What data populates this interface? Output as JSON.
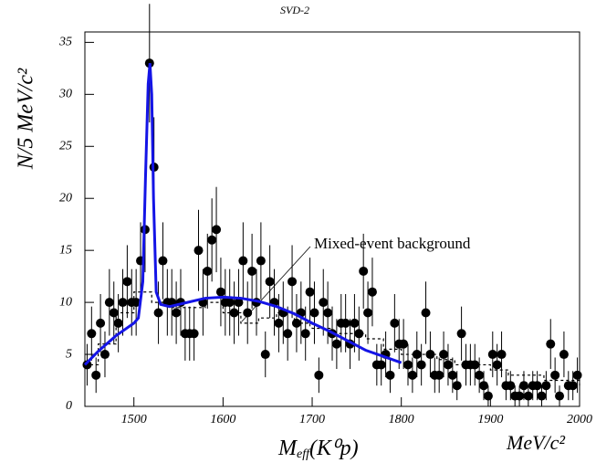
{
  "chart_data": {
    "type": "scatter",
    "title": "SVD-2",
    "y_label": "N/5 MeV/c²",
    "x_label": {
      "main": "M",
      "sub": "eff",
      "rest": "(K⁰p)"
    },
    "x_unit": "MeV/c²",
    "annotation": "Mixed-event background",
    "color": "#000000",
    "xlim": [
      1445,
      2000
    ],
    "ylim": [
      0,
      36
    ],
    "xticks": [
      1500,
      1600,
      1700,
      1800,
      1900,
      2000
    ],
    "yticks": [
      0,
      5,
      10,
      15,
      20,
      25,
      30,
      35
    ],
    "x": [
      1447.5,
      1452.5,
      1457.5,
      1462.5,
      1467.5,
      1472.5,
      1477.5,
      1482.5,
      1487.5,
      1492.5,
      1497.5,
      1502.5,
      1507.5,
      1512.5,
      1517.5,
      1522.5,
      1527.5,
      1532.5,
      1537.5,
      1542.5,
      1547.5,
      1552.5,
      1557.5,
      1562.5,
      1567.5,
      1572.5,
      1577.5,
      1582.5,
      1587.5,
      1592.5,
      1597.5,
      1602.5,
      1607.5,
      1612.5,
      1617.5,
      1622.5,
      1627.5,
      1632.5,
      1637.5,
      1642.5,
      1647.5,
      1652.5,
      1657.5,
      1662.5,
      1667.5,
      1672.5,
      1677.5,
      1682.5,
      1687.5,
      1692.5,
      1697.5,
      1702.5,
      1707.5,
      1712.5,
      1717.5,
      1722.5,
      1727.5,
      1732.5,
      1737.5,
      1742.5,
      1747.5,
      1752.5,
      1757.5,
      1762.5,
      1767.5,
      1772.5,
      1777.5,
      1782.5,
      1787.5,
      1792.5,
      1797.5,
      1802.5,
      1807.5,
      1812.5,
      1817.5,
      1822.5,
      1827.5,
      1832.5,
      1837.5,
      1842.5,
      1847.5,
      1852.5,
      1857.5,
      1862.5,
      1867.5,
      1872.5,
      1877.5,
      1882.5,
      1887.5,
      1892.5,
      1897.5,
      1902.5,
      1907.5,
      1912.5,
      1917.5,
      1922.5,
      1927.5,
      1932.5,
      1937.5,
      1942.5,
      1947.5,
      1952.5,
      1957.5,
      1962.5,
      1967.5,
      1972.5,
      1977.5,
      1982.5,
      1987.5,
      1992.5,
      1997.5
    ],
    "values": [
      4,
      7,
      3,
      8,
      5,
      10,
      9,
      8,
      10,
      12,
      10,
      10,
      14,
      17,
      33,
      23,
      9,
      14,
      10,
      10,
      9,
      10,
      7,
      7,
      7,
      15,
      10,
      13,
      16,
      17,
      11,
      10,
      10,
      9,
      10,
      14,
      9,
      13,
      10,
      14,
      5,
      12,
      10,
      8,
      9,
      7,
      12,
      8,
      9,
      7,
      11,
      9,
      3,
      10,
      9,
      7,
      6,
      8,
      8,
      6,
      8,
      7,
      13,
      9,
      11,
      4,
      4,
      5,
      3,
      8,
      6,
      6,
      4,
      3,
      5,
      4,
      9,
      5,
      3,
      3,
      5,
      4,
      3,
      2,
      7,
      4,
      4,
      4,
      3,
      2,
      1,
      5,
      4,
      5,
      2,
      2,
      1,
      1,
      2,
      1,
      2,
      2,
      1,
      2,
      6,
      3,
      1,
      5,
      2,
      2,
      3
    ],
    "errors": [
      2,
      2.6,
      1.7,
      2.8,
      2.2,
      3.2,
      3,
      2.8,
      3.2,
      3.5,
      3.2,
      3.2,
      3.7,
      4.1,
      5.7,
      4.8,
      3,
      3.7,
      3.2,
      3.2,
      3,
      3.2,
      2.6,
      2.6,
      2.6,
      3.9,
      3.2,
      3.6,
      4,
      4.1,
      3.3,
      3.2,
      3.2,
      3,
      3.2,
      3.7,
      3,
      3.6,
      3.2,
      3.7,
      2.2,
      3.5,
      3.2,
      2.8,
      3,
      2.6,
      3.5,
      2.8,
      3,
      2.6,
      3.3,
      3,
      1.7,
      3.2,
      3,
      2.6,
      2.4,
      2.8,
      2.8,
      2.4,
      2.8,
      2.6,
      3.6,
      3,
      3.3,
      2,
      2,
      2.2,
      1.7,
      2.8,
      2.4,
      2.4,
      2,
      1.7,
      2.2,
      2,
      3,
      2.2,
      1.7,
      1.7,
      2.2,
      2,
      1.7,
      1.4,
      2.6,
      2,
      2,
      2,
      1.7,
      1.4,
      1,
      2.2,
      2,
      2.2,
      1.4,
      1.4,
      1,
      1,
      1.4,
      1,
      1.4,
      1.4,
      1,
      1.4,
      2.4,
      1.7,
      1,
      2.2,
      1.4,
      1.4,
      1.7
    ],
    "fit": {
      "color": "#1414e6",
      "x": [
        1445,
        1460,
        1480,
        1500,
        1505,
        1510,
        1513,
        1516,
        1518,
        1520,
        1522,
        1525,
        1530,
        1540,
        1560,
        1580,
        1600,
        1620,
        1640,
        1660,
        1680,
        1700,
        1720,
        1740,
        1760,
        1780,
        1800
      ],
      "values": [
        4,
        5.3,
        6.8,
        8,
        8.5,
        12,
        22,
        31,
        33,
        30,
        20,
        11,
        9.8,
        9.6,
        10,
        10.4,
        10.5,
        10.4,
        10.1,
        9.6,
        8.9,
        8,
        7.2,
        6.3,
        5.4,
        4.8,
        4.2
      ]
    },
    "background": {
      "x": [
        1445,
        1460,
        1480,
        1500,
        1520,
        1540,
        1560,
        1580,
        1600,
        1620,
        1640,
        1660,
        1680,
        1700,
        1720,
        1740,
        1760,
        1780,
        1800,
        1820,
        1840,
        1860,
        1880,
        1900,
        1920,
        1940,
        1960,
        1980,
        2000
      ],
      "values": [
        4,
        6,
        9,
        11,
        10,
        9.5,
        9.5,
        10,
        9,
        8,
        8.5,
        9,
        8,
        7.5,
        7,
        7,
        6.5,
        5.5,
        5,
        5,
        4.5,
        4,
        4,
        3.5,
        3,
        3,
        2.5,
        2.5,
        2
      ]
    }
  }
}
